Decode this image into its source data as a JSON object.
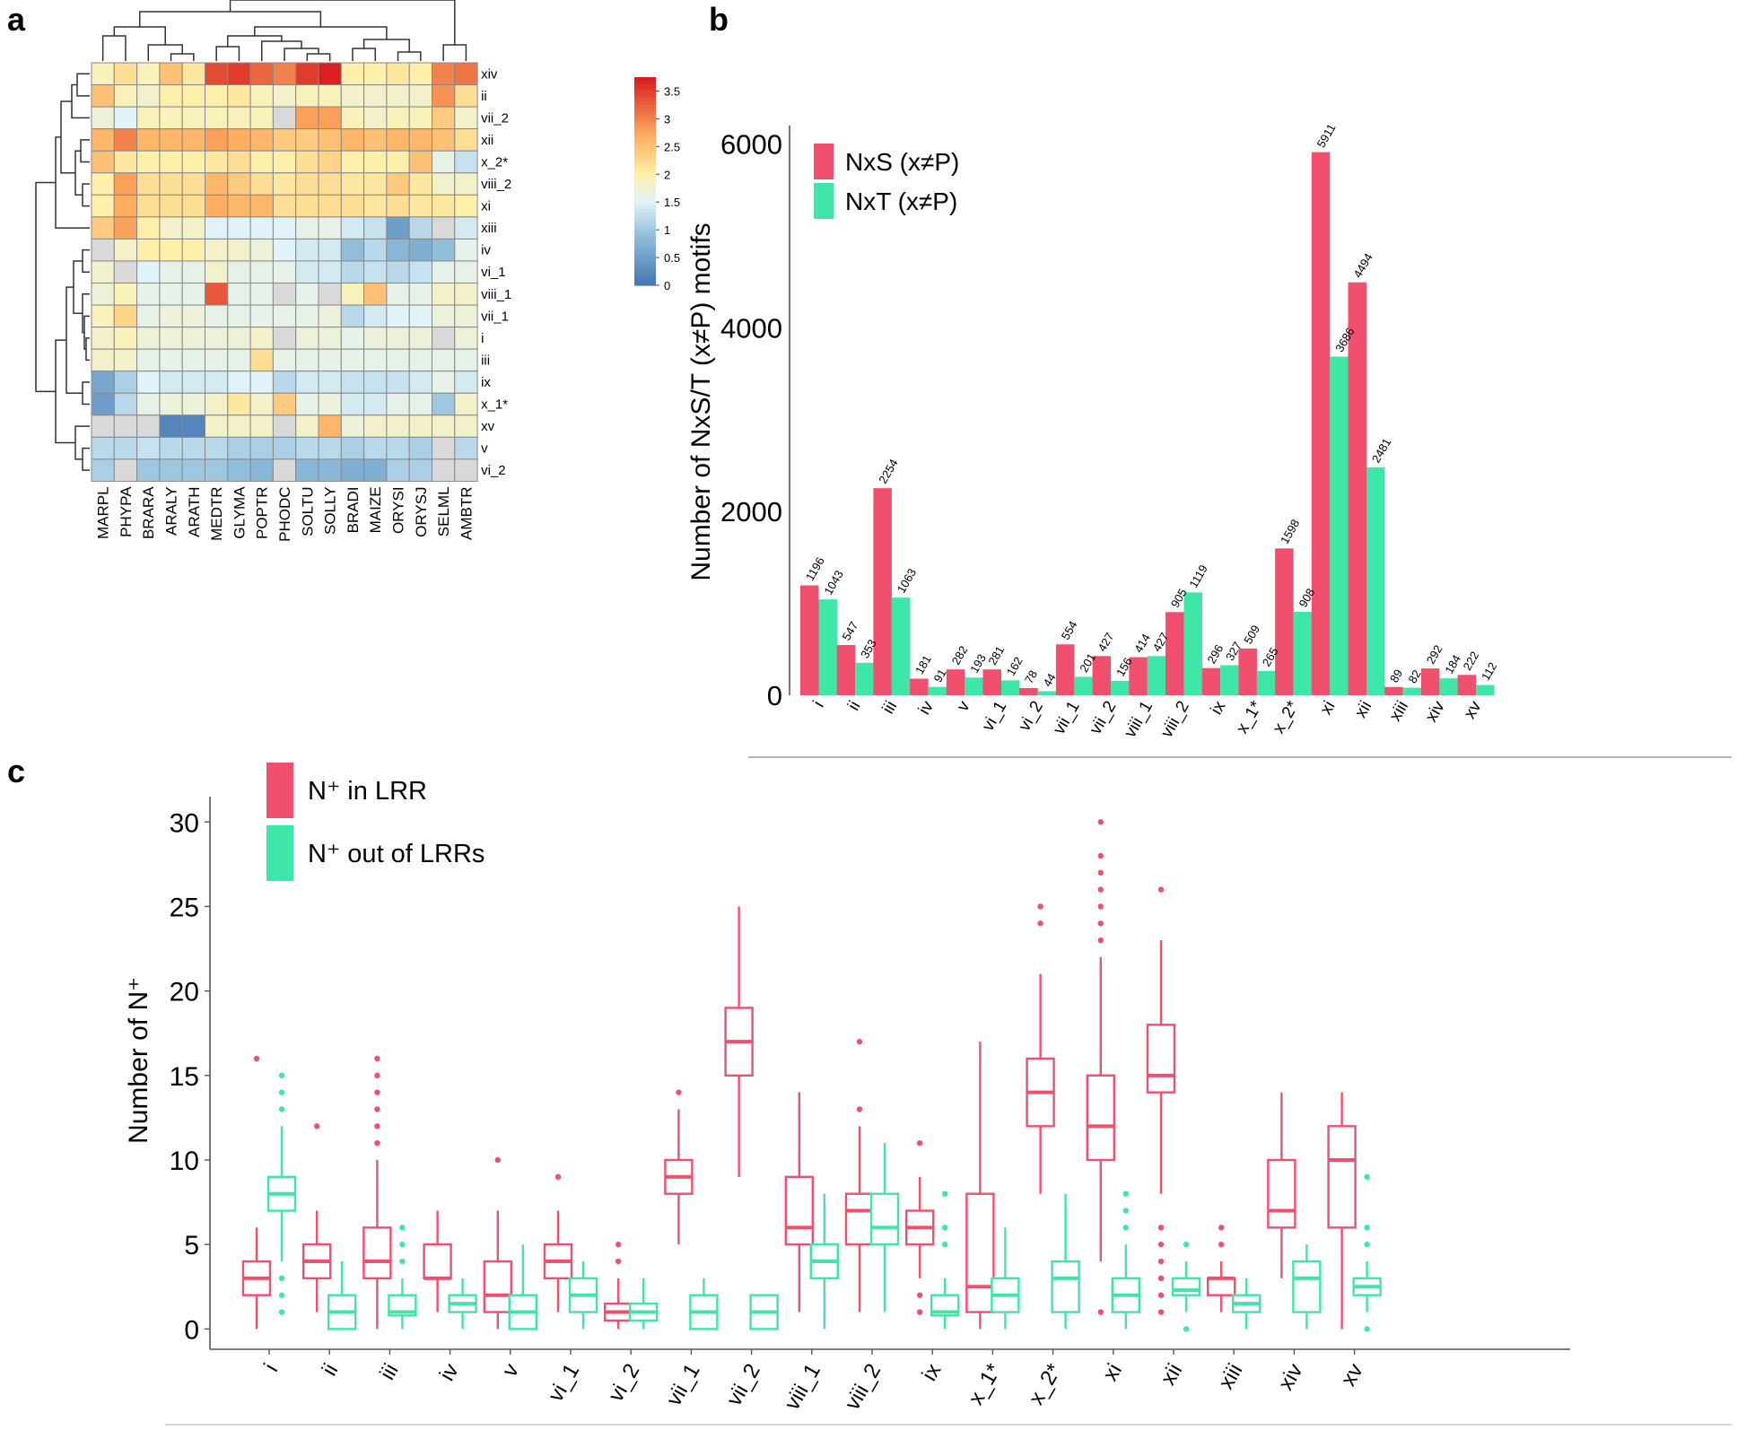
{
  "panel_labels": {
    "a": "a",
    "b": "b",
    "c": "c"
  },
  "colors": {
    "pink": "#F0506E",
    "teal": "#3EE6A8",
    "axis": "#555555",
    "grid": "#888888",
    "dendro": "#333333"
  },
  "chart_data": [
    {
      "panel": "a",
      "type": "heatmap",
      "title": "",
      "columns": [
        "MARPL",
        "PHYPA",
        "BRARA",
        "ARALY",
        "ARATH",
        "MEDTR",
        "GLYMA",
        "POPTR",
        "PHODC",
        "SOLTU",
        "SOLLY",
        "BRADI",
        "MAIZE",
        "ORYSI",
        "ORYSJ",
        "SELML",
        "AMBTR"
      ],
      "rows": [
        "xiv",
        "ii",
        "vii_2",
        "xii",
        "x_2*",
        "viii_2",
        "xi",
        "xiii",
        "iv",
        "vi_1",
        "viii_1",
        "vii_1",
        "i",
        "iii",
        "ix",
        "x_1*",
        "xv",
        "v",
        "vi_2"
      ],
      "missing_value": null,
      "values": [
        [
          1.9,
          2.2,
          1.9,
          2.5,
          2.1,
          3.4,
          3.5,
          3.2,
          3.0,
          3.5,
          3.7,
          2.0,
          2.0,
          2.1,
          2.0,
          3.0,
          3.1
        ],
        [
          2.5,
          1.9,
          1.8,
          2.0,
          2.0,
          2.0,
          2.1,
          1.9,
          1.8,
          1.9,
          1.9,
          1.8,
          1.8,
          1.8,
          1.8,
          2.9,
          2.2
        ],
        [
          1.7,
          1.5,
          1.9,
          1.9,
          1.9,
          1.9,
          1.9,
          1.9,
          null,
          2.8,
          2.8,
          1.9,
          1.8,
          1.9,
          1.9,
          2.4,
          1.8
        ],
        [
          2.6,
          3.0,
          2.6,
          2.6,
          2.6,
          2.8,
          2.7,
          2.6,
          2.4,
          2.4,
          2.5,
          2.6,
          2.5,
          2.6,
          2.6,
          2.5,
          2.2
        ],
        [
          2.5,
          2.1,
          2.0,
          2.0,
          2.0,
          2.1,
          2.2,
          2.0,
          2.0,
          2.2,
          2.3,
          2.0,
          2.0,
          2.0,
          2.5,
          1.6,
          1.3
        ],
        [
          2.0,
          2.8,
          2.2,
          2.2,
          2.2,
          2.6,
          2.4,
          2.2,
          2.1,
          2.2,
          2.2,
          2.1,
          2.1,
          2.4,
          2.1,
          1.8,
          1.8
        ],
        [
          2.0,
          2.7,
          2.2,
          2.2,
          2.2,
          2.7,
          2.6,
          2.6,
          2.2,
          2.2,
          2.2,
          2.2,
          2.1,
          2.2,
          2.1,
          2.1,
          2.0
        ],
        [
          2.4,
          2.8,
          2.0,
          1.8,
          1.8,
          1.5,
          1.5,
          1.5,
          1.5,
          1.6,
          1.6,
          1.4,
          1.3,
          0.5,
          1.2,
          null,
          1.4
        ],
        [
          null,
          1.8,
          2.0,
          2.0,
          2.0,
          1.8,
          1.8,
          1.7,
          1.5,
          1.4,
          1.4,
          0.9,
          1.2,
          0.8,
          0.7,
          0.9,
          1.6
        ],
        [
          1.8,
          null,
          1.5,
          1.6,
          1.6,
          1.8,
          1.6,
          1.6,
          1.6,
          1.4,
          1.4,
          1.2,
          1.3,
          1.2,
          1.3,
          1.6,
          1.6
        ],
        [
          1.7,
          1.9,
          1.6,
          1.6,
          1.6,
          3.3,
          1.6,
          1.6,
          null,
          1.6,
          null,
          1.9,
          2.5,
          1.6,
          1.6,
          1.8,
          1.8
        ],
        [
          1.9,
          2.3,
          1.6,
          1.7,
          1.7,
          1.6,
          1.6,
          1.6,
          1.6,
          1.6,
          1.7,
          1.2,
          1.4,
          1.5,
          1.5,
          1.7,
          1.7
        ],
        [
          1.8,
          1.9,
          1.7,
          1.7,
          1.7,
          1.7,
          1.7,
          1.8,
          null,
          1.7,
          1.7,
          1.6,
          1.7,
          1.7,
          1.7,
          null,
          1.7
        ],
        [
          1.8,
          1.8,
          1.6,
          1.6,
          1.6,
          1.6,
          1.6,
          2.2,
          1.6,
          1.6,
          1.6,
          1.6,
          1.6,
          1.6,
          1.6,
          1.6,
          1.6
        ],
        [
          0.6,
          1.1,
          1.5,
          1.4,
          1.4,
          1.4,
          1.5,
          1.5,
          1.2,
          1.4,
          1.4,
          1.3,
          1.3,
          1.3,
          1.4,
          1.6,
          1.4
        ],
        [
          0.5,
          1.2,
          1.6,
          1.7,
          1.7,
          1.8,
          2.1,
          1.8,
          2.4,
          1.6,
          1.7,
          1.4,
          1.4,
          1.6,
          1.6,
          1.0,
          1.8
        ],
        [
          null,
          null,
          null,
          0.2,
          0.2,
          1.8,
          1.8,
          1.8,
          null,
          1.8,
          2.6,
          1.7,
          1.8,
          1.8,
          1.8,
          1.8,
          1.8
        ],
        [
          1.2,
          1.2,
          1.3,
          1.2,
          1.2,
          1.2,
          1.1,
          1.1,
          1.1,
          1.2,
          1.2,
          1.1,
          1.2,
          1.2,
          1.1,
          null,
          1.2
        ],
        [
          1.1,
          null,
          1.0,
          1.0,
          1.0,
          1.0,
          0.9,
          0.8,
          null,
          0.8,
          0.8,
          0.7,
          0.7,
          1.1,
          1.1,
          null,
          null
        ]
      ],
      "colorbar": {
        "min": 0,
        "max": 3.75,
        "ticks": [
          "0",
          "0.5",
          "1",
          "1.5",
          "2",
          "2.5",
          "3",
          "3.5"
        ]
      }
    },
    {
      "panel": "b",
      "type": "bar",
      "title": "",
      "xlabel": "",
      "ylabel": "Number of NxS/T (x≠P) motifs",
      "ylim": [
        0,
        6200
      ],
      "yticks": [
        0,
        2000,
        4000,
        6000
      ],
      "categories": [
        "i",
        "ii",
        "iii",
        "iv",
        "v",
        "vi_1",
        "vi_2",
        "vii_1",
        "vii_2",
        "viii_1",
        "viii_2",
        "ix",
        "x_1*",
        "x_2*",
        "xi",
        "xii",
        "xiii",
        "xiv",
        "xv"
      ],
      "series": [
        {
          "name": "NxS (x≠P)",
          "color": "#F0506E",
          "values": [
            1196,
            547,
            2254,
            181,
            282,
            281,
            78,
            554,
            427,
            414,
            905,
            296,
            509,
            1598,
            5911,
            4494,
            89,
            292,
            222
          ]
        },
        {
          "name": "NxT (x≠P)",
          "color": "#3EE6A8",
          "values": [
            1043,
            353,
            1063,
            91,
            193,
            162,
            44,
            201,
            156,
            427,
            1119,
            327,
            265,
            908,
            3686,
            2481,
            82,
            184,
            112
          ]
        }
      ],
      "legend_position": "top-left"
    },
    {
      "panel": "c",
      "type": "box",
      "title": "",
      "xlabel": "",
      "ylabel": "Number of  N⁺",
      "ylim": [
        -1.2,
        31.5
      ],
      "yticks": [
        0,
        5,
        10,
        15,
        20,
        25,
        30
      ],
      "categories": [
        "i",
        "ii",
        "iii",
        "iv",
        "v",
        "vi_1",
        "vi_2",
        "vii_1",
        "vii_2",
        "viii_1",
        "viii_2",
        "ix",
        "x_1*",
        "x_2*",
        "xi",
        "xii",
        "xiii",
        "xiv",
        "xv"
      ],
      "legend_position": "top-left",
      "series": [
        {
          "name": "N⁺ in LRR",
          "color": "#F0506E",
          "boxes": [
            {
              "min": 0,
              "q1": 2,
              "median": 3,
              "q3": 4,
              "max": 6,
              "outliers": [
                16
              ]
            },
            {
              "min": 1,
              "q1": 3,
              "median": 4,
              "q3": 5,
              "max": 7,
              "outliers": [
                12
              ]
            },
            {
              "min": 0,
              "q1": 3,
              "median": 4,
              "q3": 6,
              "max": 10,
              "outliers": [
                11,
                12,
                13,
                14,
                15,
                16
              ]
            },
            {
              "min": 1,
              "q1": 3,
              "median": 3,
              "q3": 5,
              "max": 7,
              "outliers": []
            },
            {
              "min": 0,
              "q1": 1,
              "median": 2,
              "q3": 4,
              "max": 7,
              "outliers": [
                10
              ]
            },
            {
              "min": 1,
              "q1": 3,
              "median": 4,
              "q3": 5,
              "max": 7,
              "outliers": [
                9
              ]
            },
            {
              "min": 0,
              "q1": 0.5,
              "median": 1,
              "q3": 1.5,
              "max": 3,
              "outliers": [
                4,
                5
              ]
            },
            {
              "min": 5,
              "q1": 8,
              "median": 9,
              "q3": 10,
              "max": 13,
              "outliers": [
                14
              ]
            },
            {
              "min": 9,
              "q1": 15,
              "median": 17,
              "q3": 19,
              "max": 25,
              "outliers": []
            },
            {
              "min": 1,
              "q1": 5,
              "median": 6,
              "q3": 9,
              "max": 14,
              "outliers": []
            },
            {
              "min": 1,
              "q1": 5,
              "median": 7,
              "q3": 8,
              "max": 12,
              "outliers": [
                13,
                17
              ]
            },
            {
              "min": 3,
              "q1": 5,
              "median": 6,
              "q3": 7,
              "max": 9,
              "outliers": [
                1,
                2,
                11
              ]
            },
            {
              "min": 0,
              "q1": 1,
              "median": 2.5,
              "q3": 8,
              "max": 17,
              "outliers": []
            },
            {
              "min": 8,
              "q1": 12,
              "median": 14,
              "q3": 16,
              "max": 21,
              "outliers": [
                24,
                25
              ]
            },
            {
              "min": 4,
              "q1": 10,
              "median": 12,
              "q3": 15,
              "max": 22,
              "outliers": [
                1,
                23,
                24,
                25,
                26,
                27,
                28,
                30
              ]
            },
            {
              "min": 8,
              "q1": 14,
              "median": 15,
              "q3": 18,
              "max": 23,
              "outliers": [
                1,
                2,
                3,
                4,
                5,
                6,
                26
              ]
            },
            {
              "min": 1,
              "q1": 2,
              "median": 3,
              "q3": 3,
              "max": 4,
              "outliers": [
                5,
                6
              ]
            },
            {
              "min": 3,
              "q1": 6,
              "median": 7,
              "q3": 10,
              "max": 14,
              "outliers": []
            },
            {
              "min": 0,
              "q1": 6,
              "median": 10,
              "q3": 12,
              "max": 14,
              "outliers": []
            }
          ]
        },
        {
          "name": "N⁺ out of LRRs",
          "color": "#3EE6A8",
          "boxes": [
            {
              "min": 4,
              "q1": 7,
              "median": 8,
              "q3": 9,
              "max": 12,
              "outliers": [
                1,
                2,
                3,
                13,
                14,
                15
              ]
            },
            {
              "min": 0,
              "q1": 0,
              "median": 1,
              "q3": 2,
              "max": 4,
              "outliers": []
            },
            {
              "min": 0,
              "q1": 0.8,
              "median": 1,
              "q3": 2,
              "max": 3,
              "outliers": [
                4,
                5,
                6
              ]
            },
            {
              "min": 0,
              "q1": 1,
              "median": 1.5,
              "q3": 2,
              "max": 3,
              "outliers": []
            },
            {
              "min": 0,
              "q1": 0,
              "median": 1,
              "q3": 2,
              "max": 5,
              "outliers": []
            },
            {
              "min": 0,
              "q1": 1,
              "median": 2,
              "q3": 3,
              "max": 4,
              "outliers": []
            },
            {
              "min": 0,
              "q1": 0.5,
              "median": 1,
              "q3": 1.5,
              "max": 3,
              "outliers": []
            },
            {
              "min": 0,
              "q1": 0,
              "median": 1,
              "q3": 2,
              "max": 3,
              "outliers": []
            },
            {
              "min": 0,
              "q1": 0,
              "median": 1,
              "q3": 2,
              "max": 2,
              "outliers": []
            },
            {
              "min": 0,
              "q1": 3,
              "median": 4,
              "q3": 5,
              "max": 8,
              "outliers": []
            },
            {
              "min": 1,
              "q1": 5,
              "median": 6,
              "q3": 8,
              "max": 11,
              "outliers": []
            },
            {
              "min": 0,
              "q1": 0.8,
              "median": 1,
              "q3": 2,
              "max": 3,
              "outliers": [
                5,
                6,
                8
              ]
            },
            {
              "min": 0,
              "q1": 1,
              "median": 2,
              "q3": 3,
              "max": 6,
              "outliers": []
            },
            {
              "min": 0,
              "q1": 1,
              "median": 3,
              "q3": 4,
              "max": 8,
              "outliers": []
            },
            {
              "min": 0,
              "q1": 1,
              "median": 2,
              "q3": 3,
              "max": 5,
              "outliers": [
                6,
                7,
                8
              ]
            },
            {
              "min": 1,
              "q1": 2,
              "median": 2.3,
              "q3": 3,
              "max": 4,
              "outliers": [
                0,
                5
              ]
            },
            {
              "min": 0,
              "q1": 1,
              "median": 1.5,
              "q3": 2,
              "max": 3,
              "outliers": []
            },
            {
              "min": 0,
              "q1": 1,
              "median": 3,
              "q3": 4,
              "max": 5,
              "outliers": []
            },
            {
              "min": 1,
              "q1": 2,
              "median": 2.5,
              "q3": 3,
              "max": 4,
              "outliers": [
                0,
                5,
                6,
                9
              ]
            }
          ]
        }
      ]
    }
  ]
}
